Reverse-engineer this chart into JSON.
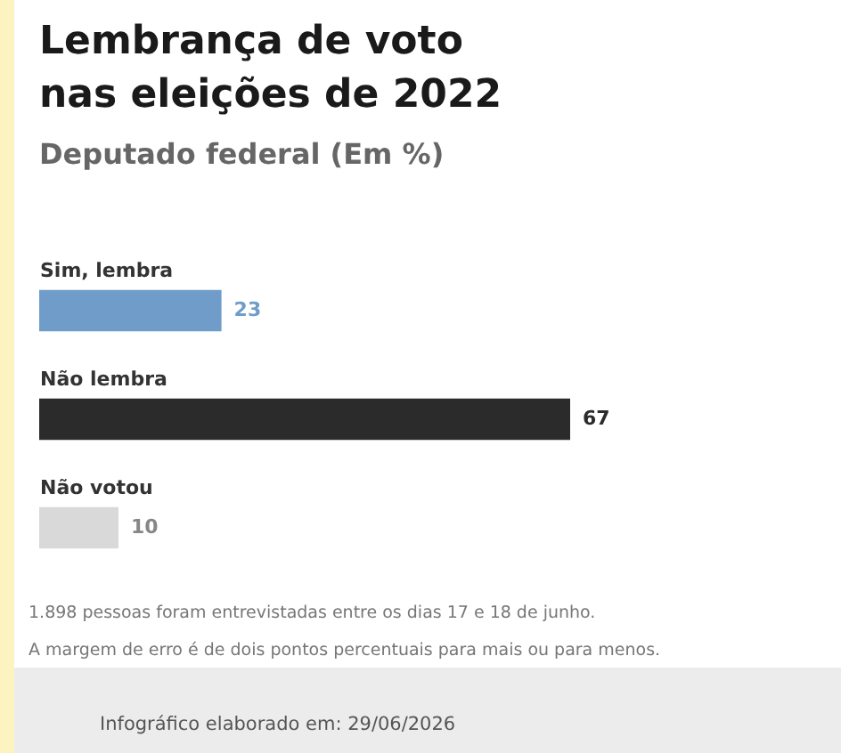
{
  "chart_data": {
    "type": "bar",
    "orientation": "horizontal",
    "title": "Lembrança de voto\nnas eleições de 2022",
    "subtitle": "Deputado federal (Em %)",
    "categories": [
      "Sim, lembra",
      "Não lembra",
      "Não votou"
    ],
    "values": [
      23,
      67,
      10
    ],
    "colors": [
      "#6f9cc9",
      "#2b2b2b",
      "#d9d9d9"
    ],
    "data_labels": true,
    "annotations": [
      "1.898 pessoas foram entrevistadas entre os dias 17 e 18 de junho.",
      "A margem de erro é de dois pontos percentuais para mais ou para menos.",
      "Infográfico elaborado em: 29/06/2026"
    ]
  }
}
